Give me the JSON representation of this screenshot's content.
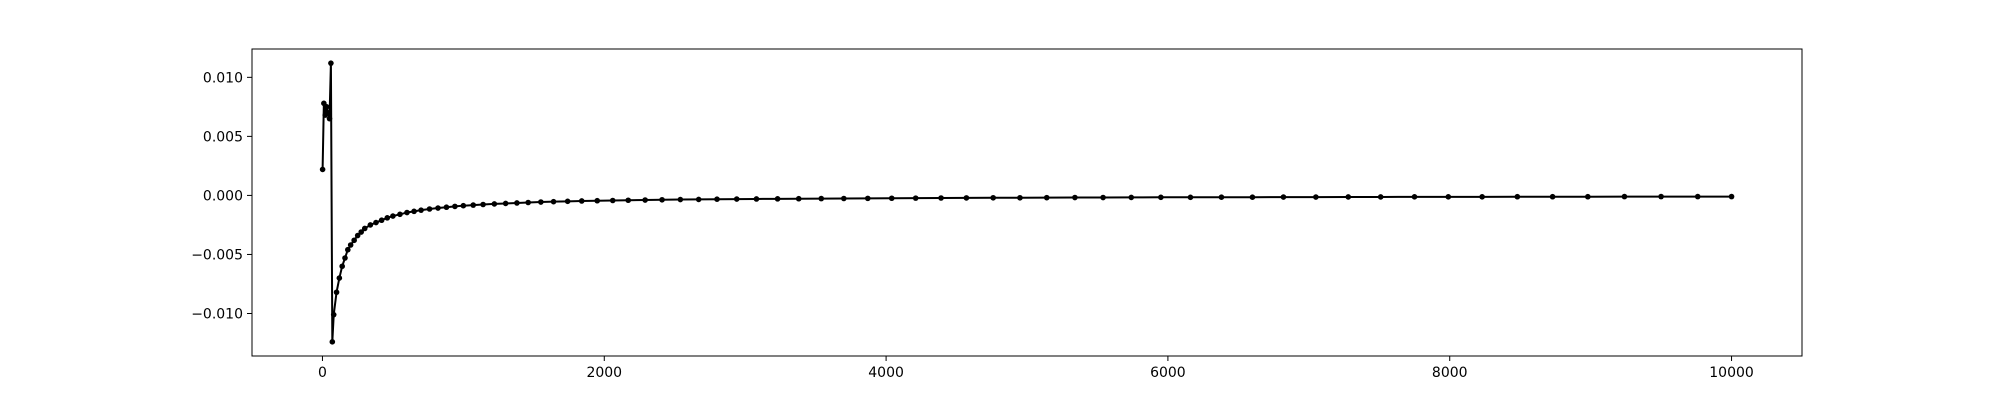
{
  "chart_data": {
    "type": "line",
    "title": "",
    "xlabel": "",
    "ylabel": "",
    "xlim": [
      -500,
      10500
    ],
    "ylim": [
      -0.0136,
      0.0124
    ],
    "grid": false,
    "legend": "none",
    "colors": {
      "line": "#000000",
      "marker": "#000000",
      "axes": "#000000",
      "background": "#ffffff"
    },
    "x_ticks": [
      {
        "value": 0,
        "label": "0"
      },
      {
        "value": 2000,
        "label": "2000"
      },
      {
        "value": 4000,
        "label": "4000"
      },
      {
        "value": 6000,
        "label": "6000"
      },
      {
        "value": 8000,
        "label": "8000"
      },
      {
        "value": 10000,
        "label": "10000"
      }
    ],
    "y_ticks": [
      {
        "value": 0.01,
        "label": "0.010"
      },
      {
        "value": 0.005,
        "label": "0.005"
      },
      {
        "value": 0.0,
        "label": "0.000"
      },
      {
        "value": -0.005,
        "label": "−0.005"
      },
      {
        "value": -0.01,
        "label": "−0.010"
      }
    ],
    "series": [
      {
        "marker": "circle",
        "x": [
          1,
          10,
          20,
          30,
          40,
          50,
          60,
          70,
          80,
          100,
          120,
          140,
          160,
          180,
          200,
          225,
          250,
          275,
          300,
          340,
          380,
          420,
          460,
          500,
          550,
          600,
          650,
          700,
          760,
          820,
          880,
          940,
          1000,
          1070,
          1140,
          1220,
          1300,
          1380,
          1460,
          1550,
          1640,
          1740,
          1840,
          1950,
          2060,
          2170,
          2290,
          2410,
          2540,
          2670,
          2800,
          2940,
          3080,
          3230,
          3380,
          3540,
          3700,
          3870,
          4040,
          4210,
          4390,
          4570,
          4760,
          4950,
          5140,
          5340,
          5540,
          5740,
          5950,
          6160,
          6380,
          6600,
          6820,
          7050,
          7280,
          7510,
          7750,
          7990,
          8230,
          8480,
          8730,
          8980,
          9240,
          9500,
          9760,
          10000
        ],
        "y": [
          0.0022,
          0.0078,
          0.0068,
          0.0075,
          0.007,
          0.0065,
          0.0112,
          -0.0124,
          -0.0101,
          -0.0082,
          -0.007,
          -0.006,
          -0.0053,
          -0.0046,
          -0.0042,
          -0.0038,
          -0.0034,
          -0.0031,
          -0.0028,
          -0.0025,
          -0.0023,
          -0.0021,
          -0.0019,
          -0.00175,
          -0.0016,
          -0.00145,
          -0.00135,
          -0.00125,
          -0.00115,
          -0.00107,
          -0.001,
          -0.00093,
          -0.00087,
          -0.00082,
          -0.00077,
          -0.00072,
          -0.00068,
          -0.00064,
          -0.0006,
          -0.00056,
          -0.00053,
          -0.0005,
          -0.00047,
          -0.00045,
          -0.00043,
          -0.00041,
          -0.00039,
          -0.00037,
          -0.00035,
          -0.00034,
          -0.00032,
          -0.00031,
          -0.0003,
          -0.00029,
          -0.00028,
          -0.00027,
          -0.00026,
          -0.00025,
          -0.00024,
          -0.00023,
          -0.00022,
          -0.00021,
          -0.0002,
          -0.0002,
          -0.00019,
          -0.00018,
          -0.00018,
          -0.00017,
          -0.00016,
          -0.00016,
          -0.00015,
          -0.00015,
          -0.00014,
          -0.00014,
          -0.00013,
          -0.00013,
          -0.00012,
          -0.00012,
          -0.00012,
          -0.00011,
          -0.00011,
          -0.00011,
          -0.0001,
          -0.0001,
          -0.0001,
          -0.0001
        ]
      }
    ]
  }
}
